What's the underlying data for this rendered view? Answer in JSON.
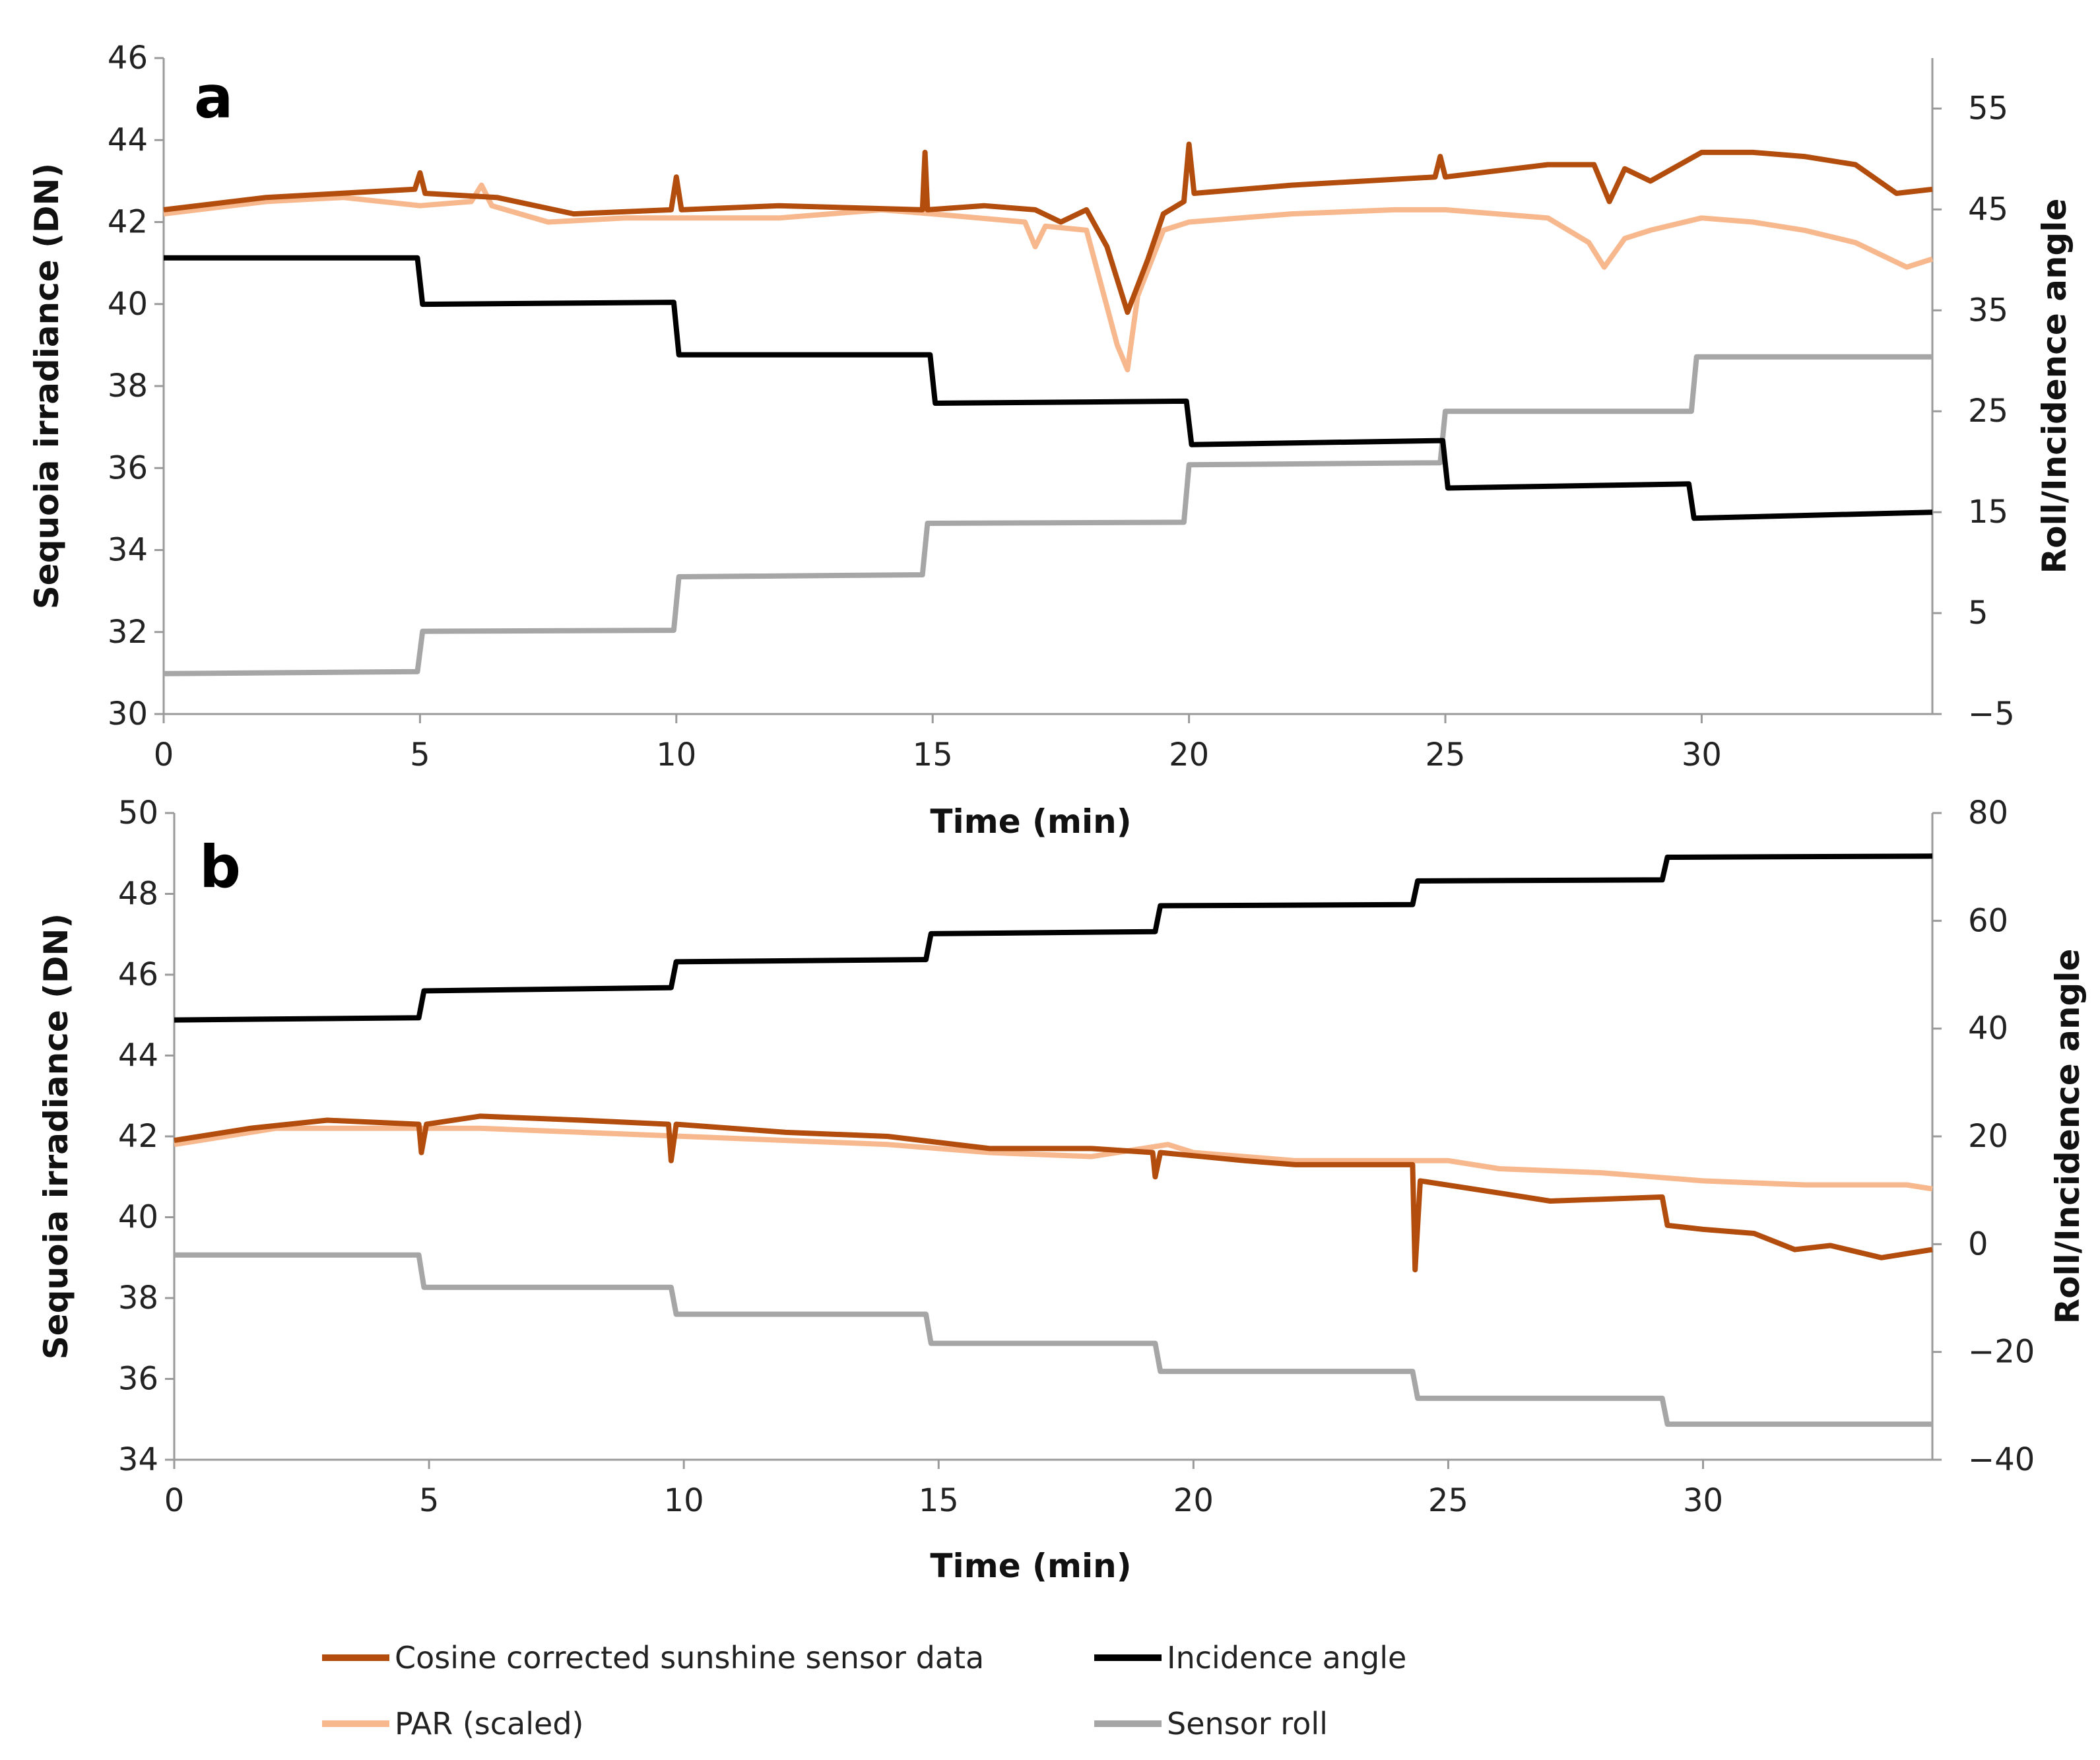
{
  "legend": {
    "entries": [
      {
        "label": "Cosine corrected sunshine sensor data",
        "color": "#b34d0e"
      },
      {
        "label": "Incidence angle",
        "color": "#000000"
      },
      {
        "label": "PAR (scaled)",
        "color": "#f8b88e"
      },
      {
        "label": "Sensor roll",
        "color": "#a6a6a6"
      }
    ]
  },
  "chart_data": [
    {
      "type": "line",
      "panel_label": "a",
      "xlabel": "Time (min)",
      "ylabel": "Sequoia irradiance (DN)",
      "y2label": "Roll/Incidence angle",
      "xlim": [
        0,
        34.5
      ],
      "ylim": [
        30,
        46
      ],
      "y2lim": [
        -5,
        60
      ],
      "x_ticks": [
        "0",
        "5",
        "10",
        "15",
        "20",
        "25",
        "30"
      ],
      "y_ticks": [
        "30",
        "32",
        "34",
        "36",
        "38",
        "40",
        "42",
        "44",
        "46"
      ],
      "y2_ticks": [
        "−5",
        "5",
        "15",
        "25",
        "35",
        "45",
        "55"
      ],
      "series": [
        {
          "name": "Cosine corrected sunshine sensor data",
          "axis": "left",
          "color": "#b34d0e",
          "x": [
            0,
            2,
            4.9,
            5,
            5.1,
            6.5,
            8,
            9.9,
            10,
            10.1,
            12,
            14.8,
            14.85,
            14.9,
            16,
            17,
            17.5,
            18,
            18.4,
            18.8,
            19.2,
            19.5,
            19.9,
            20,
            20.1,
            22,
            24.8,
            24.9,
            25,
            27,
            27.9,
            28.2,
            28.5,
            29,
            30,
            31,
            32,
            33,
            33.8,
            34.5
          ],
          "y": [
            42.3,
            42.6,
            42.8,
            43.2,
            42.7,
            42.6,
            42.2,
            42.3,
            43.1,
            42.3,
            42.4,
            42.3,
            43.7,
            42.3,
            42.4,
            42.3,
            42.0,
            42.3,
            41.4,
            39.8,
            41.1,
            42.2,
            42.5,
            43.9,
            42.7,
            42.9,
            43.1,
            43.6,
            43.1,
            43.4,
            43.4,
            42.5,
            43.3,
            43.0,
            43.7,
            43.7,
            43.6,
            43.4,
            42.7,
            42.8
          ]
        },
        {
          "name": "PAR (scaled)",
          "axis": "left",
          "color": "#f8b88e",
          "x": [
            0,
            2,
            3.5,
            5,
            6,
            6.2,
            6.4,
            7.5,
            9,
            10,
            12,
            14,
            15,
            16.8,
            17,
            17.2,
            18,
            18.6,
            18.8,
            19,
            19.5,
            20,
            22,
            24,
            25,
            27,
            27.8,
            28.1,
            28.5,
            29,
            30,
            31,
            32,
            33,
            34,
            34.5
          ],
          "y": [
            42.2,
            42.5,
            42.6,
            42.4,
            42.5,
            42.9,
            42.4,
            42.0,
            42.1,
            42.1,
            42.1,
            42.3,
            42.2,
            42.0,
            41.4,
            41.9,
            41.8,
            39.0,
            38.4,
            40.2,
            41.8,
            42.0,
            42.2,
            42.3,
            42.3,
            42.1,
            41.5,
            40.9,
            41.6,
            41.8,
            42.1,
            42.0,
            41.8,
            41.5,
            40.9,
            41.1
          ]
        },
        {
          "name": "Incidence angle",
          "axis": "right",
          "color": "#000000",
          "x": [
            0,
            4.95,
            5.05,
            9.95,
            10.05,
            14.95,
            15.05,
            19.95,
            20.05,
            24.95,
            25.05,
            29.75,
            29.85,
            34.5
          ],
          "y": [
            40.2,
            40.2,
            35.6,
            35.8,
            30.6,
            30.6,
            25.8,
            26.0,
            21.7,
            22.1,
            17.4,
            17.8,
            14.4,
            15.0
          ]
        },
        {
          "name": "Sensor roll",
          "axis": "right",
          "color": "#a6a6a6",
          "x": [
            0,
            4.95,
            5.05,
            9.95,
            10.05,
            14.8,
            14.9,
            19.9,
            20.0,
            24.9,
            25.0,
            29.8,
            29.9,
            34.5
          ],
          "y": [
            -1.0,
            -0.8,
            3.2,
            3.3,
            8.6,
            8.8,
            13.9,
            14.0,
            19.7,
            19.9,
            25.0,
            25.0,
            30.4,
            30.4
          ]
        }
      ]
    },
    {
      "type": "line",
      "panel_label": "b",
      "xlabel": "Time (min)",
      "ylabel": "Sequoia irradiance (DN)",
      "y2label": "Roll/Incidence angle",
      "xlim": [
        0,
        34.5
      ],
      "ylim": [
        34,
        50
      ],
      "y2lim": [
        -40,
        80
      ],
      "x_ticks": [
        "0",
        "5",
        "10",
        "15",
        "20",
        "25",
        "30"
      ],
      "y_ticks": [
        "34",
        "36",
        "38",
        "40",
        "42",
        "44",
        "46",
        "48",
        "50"
      ],
      "y2_ticks": [
        "−40",
        "−20",
        "0",
        "20",
        "40",
        "60",
        "80"
      ],
      "series": [
        {
          "name": "Cosine corrected sunshine sensor data",
          "axis": "left",
          "color": "#b34d0e",
          "x": [
            0,
            1.5,
            3,
            4.8,
            4.85,
            4.95,
            6,
            8,
            9.7,
            9.75,
            9.85,
            12,
            14,
            16,
            18,
            19.2,
            19.25,
            19.35,
            21,
            22,
            24.3,
            24.35,
            24.45,
            26,
            27,
            29.2,
            29.3,
            30,
            31,
            31.8,
            32.5,
            33.5,
            34.5
          ],
          "y": [
            41.9,
            42.2,
            42.4,
            42.3,
            41.6,
            42.3,
            42.5,
            42.4,
            42.3,
            41.4,
            42.3,
            42.1,
            42.0,
            41.7,
            41.7,
            41.6,
            41.0,
            41.6,
            41.4,
            41.3,
            41.3,
            38.7,
            40.9,
            40.6,
            40.4,
            40.5,
            39.8,
            39.7,
            39.6,
            39.2,
            39.3,
            39.0,
            39.2
          ]
        },
        {
          "name": "PAR (scaled)",
          "axis": "left",
          "color": "#f8b88e",
          "x": [
            0,
            1,
            2,
            4,
            6,
            8,
            10,
            12,
            14,
            16,
            18,
            19.5,
            20,
            22,
            24,
            25,
            26,
            28,
            30,
            32,
            34,
            34.5
          ],
          "y": [
            41.8,
            42.0,
            42.2,
            42.2,
            42.2,
            42.1,
            42.0,
            41.9,
            41.8,
            41.6,
            41.5,
            41.8,
            41.6,
            41.4,
            41.4,
            41.4,
            41.2,
            41.1,
            40.9,
            40.8,
            40.8,
            40.7
          ]
        },
        {
          "name": "Incidence angle",
          "axis": "right",
          "color": "#000000",
          "x": [
            0,
            4.8,
            4.9,
            9.75,
            9.85,
            14.75,
            14.85,
            19.25,
            19.35,
            24.3,
            24.4,
            29.2,
            29.3,
            34.5
          ],
          "y": [
            41.6,
            42.0,
            47.0,
            47.6,
            52.4,
            52.8,
            57.6,
            58.0,
            62.8,
            63.0,
            67.4,
            67.6,
            71.8,
            72.0
          ]
        },
        {
          "name": "Sensor roll",
          "axis": "right",
          "color": "#a6a6a6",
          "x": [
            0,
            4.8,
            4.9,
            9.75,
            9.85,
            14.75,
            14.85,
            19.25,
            19.35,
            24.3,
            24.4,
            29.2,
            29.3,
            34.5
          ],
          "y": [
            -2.0,
            -2.0,
            -8.0,
            -8.0,
            -13.0,
            -13.0,
            -18.4,
            -18.4,
            -23.6,
            -23.6,
            -28.6,
            -28.6,
            -33.4,
            -33.4
          ]
        }
      ]
    }
  ]
}
